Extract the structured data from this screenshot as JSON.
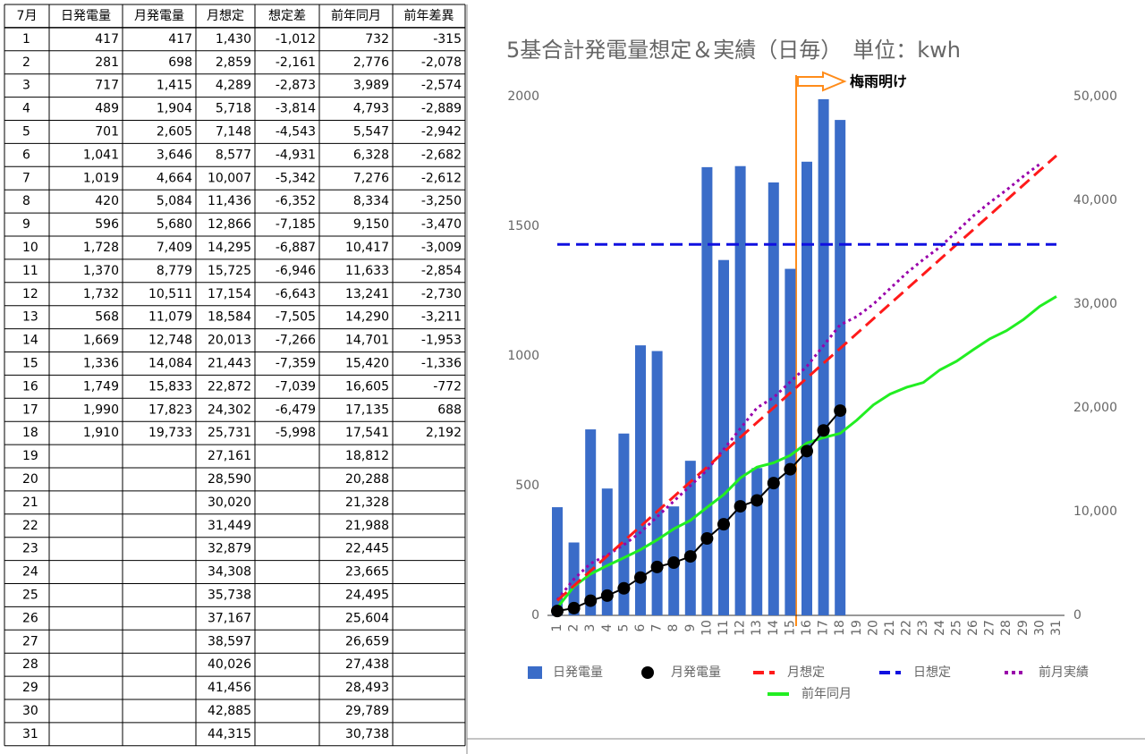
{
  "table": {
    "header": [
      "7月",
      "日発電量",
      "月発電量",
      "月想定",
      "想定差",
      "前年同月",
      "前年差異"
    ],
    "rows": [
      [
        "1",
        "417",
        "417",
        "1,430",
        "-1,012",
        "732",
        "-315"
      ],
      [
        "2",
        "281",
        "698",
        "2,859",
        "-2,161",
        "2,776",
        "-2,078"
      ],
      [
        "3",
        "717",
        "1,415",
        "4,289",
        "-2,873",
        "3,989",
        "-2,574"
      ],
      [
        "4",
        "489",
        "1,904",
        "5,718",
        "-3,814",
        "4,793",
        "-2,889"
      ],
      [
        "5",
        "701",
        "2,605",
        "7,148",
        "-4,543",
        "5,547",
        "-2,942"
      ],
      [
        "6",
        "1,041",
        "3,646",
        "8,577",
        "-4,931",
        "6,328",
        "-2,682"
      ],
      [
        "7",
        "1,019",
        "4,664",
        "10,007",
        "-5,342",
        "7,276",
        "-2,612"
      ],
      [
        "8",
        "420",
        "5,084",
        "11,436",
        "-6,352",
        "8,334",
        "-3,250"
      ],
      [
        "9",
        "596",
        "5,680",
        "12,866",
        "-7,185",
        "9,150",
        "-3,470"
      ],
      [
        "10",
        "1,728",
        "7,409",
        "14,295",
        "-6,887",
        "10,417",
        "-3,009"
      ],
      [
        "11",
        "1,370",
        "8,779",
        "15,725",
        "-6,946",
        "11,633",
        "-2,854"
      ],
      [
        "12",
        "1,732",
        "10,511",
        "17,154",
        "-6,643",
        "13,241",
        "-2,730"
      ],
      [
        "13",
        "568",
        "11,079",
        "18,584",
        "-7,505",
        "14,290",
        "-3,211"
      ],
      [
        "14",
        "1,669",
        "12,748",
        "20,013",
        "-7,266",
        "14,701",
        "-1,953"
      ],
      [
        "15",
        "1,336",
        "14,084",
        "21,443",
        "-7,359",
        "15,420",
        "-1,336"
      ],
      [
        "16",
        "1,749",
        "15,833",
        "22,872",
        "-7,039",
        "16,605",
        "-772"
      ],
      [
        "17",
        "1,990",
        "17,823",
        "24,302",
        "-6,479",
        "17,135",
        "688"
      ],
      [
        "18",
        "1,910",
        "19,733",
        "25,731",
        "-5,998",
        "17,541",
        "2,192"
      ],
      [
        "19",
        null,
        null,
        "27,161",
        null,
        "18,812",
        null
      ],
      [
        "20",
        null,
        null,
        "28,590",
        null,
        "20,288",
        null
      ],
      [
        "21",
        null,
        null,
        "30,020",
        null,
        "21,328",
        null
      ],
      [
        "22",
        null,
        null,
        "31,449",
        null,
        "21,988",
        null
      ],
      [
        "23",
        null,
        null,
        "32,879",
        null,
        "22,445",
        null
      ],
      [
        "24",
        null,
        null,
        "34,308",
        null,
        "23,665",
        null
      ],
      [
        "25",
        null,
        null,
        "35,738",
        null,
        "24,495",
        null
      ],
      [
        "26",
        null,
        null,
        "37,167",
        null,
        "25,604",
        null
      ],
      [
        "27",
        null,
        null,
        "38,597",
        null,
        "26,659",
        null
      ],
      [
        "28",
        null,
        null,
        "40,026",
        null,
        "27,438",
        null
      ],
      [
        "29",
        null,
        null,
        "41,456",
        null,
        "28,493",
        null
      ],
      [
        "30",
        null,
        null,
        "42,885",
        null,
        "29,789",
        null
      ],
      [
        "31",
        null,
        null,
        "44,315",
        null,
        "30,738",
        null
      ]
    ]
  },
  "chart_data": {
    "type": "combo",
    "title": "5基合計発電量想定＆実績（日毎）　単位：kwh",
    "annotation": "梅雨明け",
    "categories": [
      "1",
      "2",
      "3",
      "4",
      "5",
      "6",
      "7",
      "8",
      "9",
      "10",
      "11",
      "12",
      "13",
      "14",
      "15",
      "16",
      "17",
      "18",
      "19",
      "20",
      "21",
      "22",
      "23",
      "24",
      "25",
      "26",
      "27",
      "28",
      "29",
      "30",
      "31"
    ],
    "ylim": [
      0,
      2000
    ],
    "yticks": [
      0,
      500,
      1000,
      1500,
      2000
    ],
    "y2lim": [
      0,
      50000
    ],
    "y2ticks": [
      0,
      {
        "value": 10000,
        "label": "10,000"
      },
      {
        "value": 20000,
        "label": "20,000"
      },
      {
        "value": 30000,
        "label": "30,000"
      },
      {
        "value": 40000,
        "label": "40,000"
      },
      {
        "value": 50000,
        "label": "50,000"
      }
    ],
    "series": [
      {
        "name": "日発電量",
        "style": "bar",
        "color": "#3a6cc8",
        "values": [
          417,
          281,
          717,
          489,
          701,
          1041,
          1019,
          420,
          596,
          1728,
          1370,
          1732,
          568,
          1669,
          1336,
          1749,
          1990,
          1910,
          null,
          null,
          null,
          null,
          null,
          null,
          null,
          null,
          null,
          null,
          null,
          null,
          null
        ]
      },
      {
        "name": "月発電量",
        "style": "dots",
        "color": "#000000",
        "axis": "y2",
        "values": [
          417,
          698,
          1415,
          1904,
          2605,
          3646,
          4664,
          5084,
          5680,
          7409,
          8779,
          10511,
          11079,
          12748,
          14084,
          15833,
          17823,
          19733,
          null,
          null,
          null,
          null,
          null,
          null,
          null,
          null,
          null,
          null,
          null,
          null,
          null
        ]
      },
      {
        "name": "月想定",
        "style": "dashed",
        "color": "#ff1a1a",
        "axis": "y2",
        "values": [
          1430,
          2859,
          4289,
          5718,
          7148,
          8577,
          10007,
          11436,
          12866,
          14295,
          15725,
          17154,
          18584,
          20013,
          21443,
          22872,
          24302,
          25731,
          27161,
          28590,
          30020,
          31449,
          32879,
          34308,
          35738,
          37167,
          38597,
          40026,
          41456,
          42885,
          44315
        ]
      },
      {
        "name": "日想定",
        "style": "dashed",
        "color": "#1010e0",
        "values": [
          1430,
          1430,
          1430,
          1430,
          1430,
          1430,
          1430,
          1430,
          1430,
          1430,
          1430,
          1430,
          1430,
          1430,
          1430,
          1430,
          1430,
          1430,
          1430,
          1430,
          1430,
          1430,
          1430,
          1430,
          1430,
          1430,
          1430,
          1430,
          1430,
          1430,
          1430
        ]
      },
      {
        "name": "前月実績",
        "style": "dotted",
        "color": "#9900aa",
        "axis": "y2",
        "values": [
          1500,
          3500,
          5000,
          5800,
          6800,
          8000,
          9500,
          11000,
          12500,
          14000,
          16000,
          18000,
          20000,
          21000,
          22500,
          24000,
          26000,
          28000,
          28800,
          30000,
          31500,
          33000,
          34300,
          35500,
          37000,
          38500,
          39800,
          41000,
          42300,
          43500,
          null
        ]
      },
      {
        "name": "前年同月",
        "style": "solid",
        "color": "#22ee22",
        "axis": "y2",
        "values": [
          732,
          2776,
          3989,
          4793,
          5547,
          6328,
          7276,
          8334,
          9150,
          10417,
          11633,
          13241,
          14290,
          14701,
          15420,
          16605,
          17135,
          17541,
          18812,
          20288,
          21328,
          21988,
          22445,
          23665,
          24495,
          25604,
          26659,
          27438,
          28493,
          29789,
          30738
        ]
      }
    ]
  }
}
